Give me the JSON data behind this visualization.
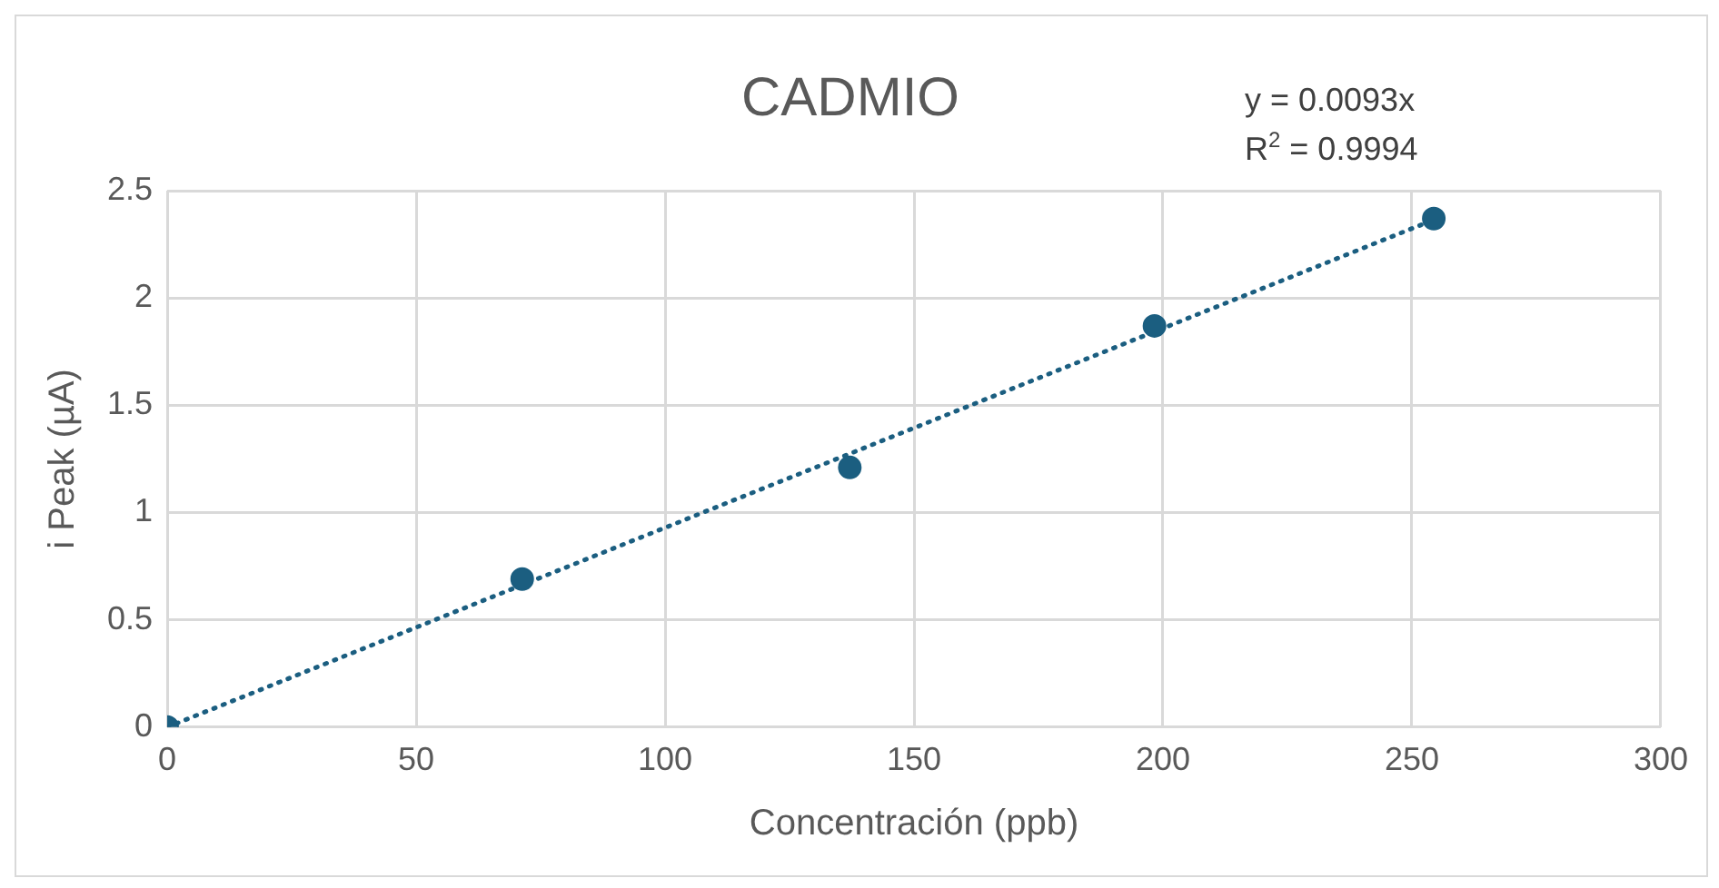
{
  "chart_data": {
    "type": "scatter",
    "title": "CADMIO",
    "xlabel": "Concentración (ppb)",
    "ylabel": "i Peak (µA)",
    "x": [
      0,
      71.3,
      137.1,
      198.3,
      254.4
    ],
    "series": [
      {
        "color": "#1b5e80",
        "values": [
          0,
          0.69,
          1.21,
          1.87,
          2.37
        ],
        "marker": "circle"
      },
      {
        "type": "line",
        "color": "#1b5e80",
        "x": [
          0,
          255
        ],
        "values": [
          0,
          2.37
        ],
        "marker": "none",
        "line_style": "dotted"
      }
    ],
    "xlim": [
      0,
      300
    ],
    "xticks": [
      0,
      50,
      100,
      150,
      200,
      250,
      300
    ],
    "ylim": [
      0,
      2.5
    ],
    "yticks": [
      0,
      0.5,
      1,
      1.5,
      2,
      2.5
    ],
    "grid": true,
    "legend": false,
    "annotations": [
      "y = 0.0093x",
      "R$^{2}$ = 0.9994"
    ]
  }
}
